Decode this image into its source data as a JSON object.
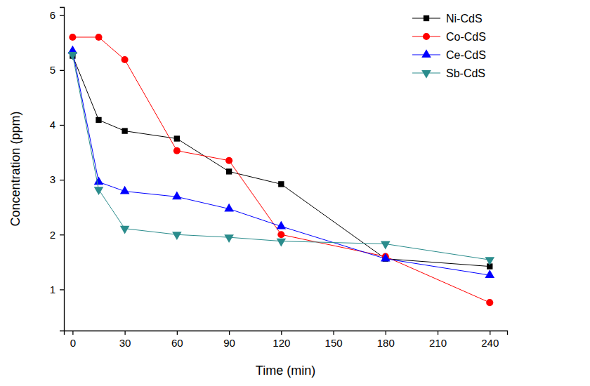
{
  "chart_data": {
    "type": "line",
    "x_label": "Time (min)",
    "y_label": "Concentration (ppm)",
    "x": [
      0,
      15,
      30,
      60,
      90,
      120,
      180,
      240
    ],
    "series": [
      {
        "name": "Ni-CdS",
        "color": "#000000",
        "marker": "square",
        "values": [
          5.26,
          4.09,
          3.89,
          3.75,
          3.15,
          2.92,
          1.56,
          1.42
        ]
      },
      {
        "name": "Co-CdS",
        "color": "#ff0000",
        "marker": "circle",
        "values": [
          5.6,
          5.6,
          5.19,
          3.53,
          3.35,
          2.0,
          1.6,
          0.76
        ]
      },
      {
        "name": "Ce-CdS",
        "color": "#0000ff",
        "marker": "triangle-up",
        "values": [
          5.35,
          2.96,
          2.79,
          2.69,
          2.47,
          2.15,
          1.56,
          1.26
        ]
      },
      {
        "name": "Sb-CdS",
        "color": "#2a8c8c",
        "marker": "triangle-down",
        "values": [
          5.28,
          2.82,
          2.11,
          2.0,
          1.95,
          1.88,
          1.83,
          1.54
        ]
      }
    ],
    "xlim": [
      -5,
      250
    ],
    "xticks": [
      0,
      30,
      60,
      90,
      120,
      150,
      180,
      210,
      240
    ],
    "ylim": [
      0.25,
      6.15
    ],
    "yticks": [
      1,
      2,
      3,
      4,
      5,
      6
    ],
    "legend": "upper right",
    "grid": false
  }
}
